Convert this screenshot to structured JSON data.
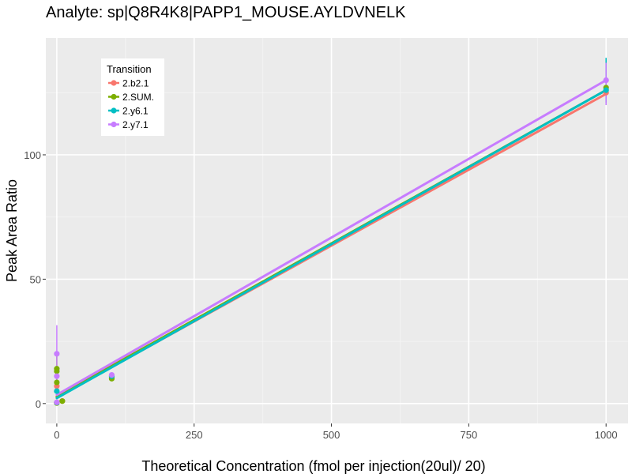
{
  "chart_data": {
    "type": "line",
    "title": "Analyte: sp|Q8R4K8|PAPP1_MOUSE.AYLDVNELK",
    "xlabel": "Theoretical Concentration (fmol per injection(20ul)/ 20)",
    "ylabel": "Peak Area Ratio",
    "xlim": [
      -20,
      1040
    ],
    "ylim": [
      -8,
      147
    ],
    "x_ticks": [
      0,
      250,
      500,
      750,
      1000
    ],
    "x_tick_labels": [
      "0",
      "250",
      "500",
      "750",
      "1000"
    ],
    "y_ticks": [
      0,
      50,
      100
    ],
    "y_tick_labels": [
      "0",
      "50",
      "100"
    ],
    "grid": true,
    "legend": {
      "title": "Transition",
      "position": "top-left"
    },
    "series": [
      {
        "name": "2.b2.1",
        "color": "#F8766D",
        "points": [
          {
            "x": 0,
            "y": 0.3
          },
          {
            "x": 0,
            "y": 7
          },
          {
            "x": 10,
            "y": 1
          },
          {
            "x": 100,
            "y": 10.5
          },
          {
            "x": 1000,
            "y": 125
          }
        ],
        "errorbars": [],
        "fit": {
          "x": [
            0,
            1000
          ],
          "y": [
            2.5,
            124.5
          ]
        }
      },
      {
        "name": "2.SUM.",
        "color": "#7CAE00",
        "points": [
          {
            "x": 0,
            "y": 0.2
          },
          {
            "x": 0,
            "y": 8.5
          },
          {
            "x": 0,
            "y": 13
          },
          {
            "x": 0,
            "y": 14
          },
          {
            "x": 10,
            "y": 1
          },
          {
            "x": 100,
            "y": 10
          },
          {
            "x": 1000,
            "y": 127
          }
        ],
        "errorbars": [
          {
            "x": 0,
            "ymin": 7,
            "ymax": 21
          }
        ],
        "fit": {
          "x": [
            0,
            1000
          ],
          "y": [
            2.8,
            126
          ]
        }
      },
      {
        "name": "2.y6.1",
        "color": "#00BFC4",
        "points": [
          {
            "x": 0,
            "y": 0.4
          },
          {
            "x": 0,
            "y": 5
          },
          {
            "x": 100,
            "y": 11
          },
          {
            "x": 1000,
            "y": 126
          }
        ],
        "errorbars": [
          {
            "x": 1000,
            "ymin": 121,
            "ymax": 139
          }
        ],
        "fit": {
          "x": [
            0,
            1000
          ],
          "y": [
            2.2,
            126
          ]
        }
      },
      {
        "name": "2.y7.1",
        "color": "#C77CFF",
        "points": [
          {
            "x": 0,
            "y": 0.5
          },
          {
            "x": 0,
            "y": 11
          },
          {
            "x": 0,
            "y": 20
          },
          {
            "x": 100,
            "y": 11.5
          },
          {
            "x": 1000,
            "y": 130
          }
        ],
        "errorbars": [
          {
            "x": 0,
            "ymin": 9,
            "ymax": 31.5
          },
          {
            "x": 1000,
            "ymin": 120,
            "ymax": 137
          }
        ],
        "fit": {
          "x": [
            0,
            1000
          ],
          "y": [
            3.5,
            130
          ]
        }
      }
    ]
  }
}
